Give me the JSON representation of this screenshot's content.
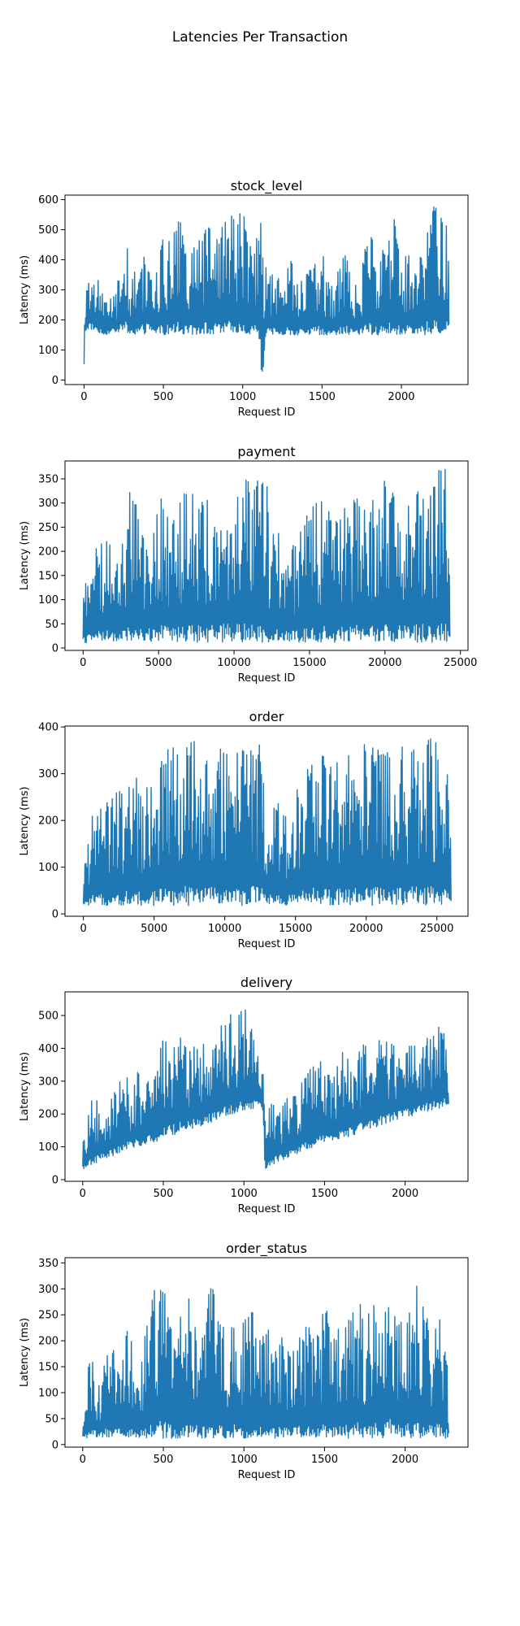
{
  "figure": {
    "suptitle": "Latencies Per Transaction"
  },
  "chart_data": [
    {
      "type": "line",
      "title": "stock_level",
      "xlabel": "Request ID",
      "ylabel": "Latency (ms)",
      "xlim": [
        -120,
        2420
      ],
      "ylim": [
        -15,
        615
      ],
      "xticks": [
        0,
        500,
        1000,
        1500,
        2000
      ],
      "xtick_labels": [
        "0",
        "500",
        "1000",
        "1500",
        "2000"
      ],
      "yticks": [
        0,
        100,
        200,
        300,
        400,
        500,
        600
      ],
      "ytick_labels": [
        "0",
        "100",
        "200",
        "300",
        "400",
        "500",
        "600"
      ],
      "color": "#1f77b4",
      "series": [
        {
          "x": [
            0,
            5,
            30,
            80,
            130,
            200,
            260,
            300,
            350,
            400,
            450,
            500,
            550,
            600,
            650,
            700,
            750,
            800,
            850,
            900,
            950,
            1000,
            1050,
            1100,
            1120,
            1130,
            1140,
            1150,
            1200,
            1250,
            1300,
            1350,
            1400,
            1450,
            1500,
            1550,
            1600,
            1650,
            1700,
            1750,
            1800,
            1850,
            1900,
            1950,
            2000,
            2050,
            2100,
            2150,
            2200,
            2250,
            2280,
            2300
          ],
          "min": [
            50,
            160,
            170,
            160,
            150,
            160,
            160,
            150,
            150,
            155,
            150,
            150,
            150,
            150,
            150,
            150,
            155,
            150,
            150,
            150,
            150,
            150,
            150,
            150,
            15,
            10,
            130,
            150,
            150,
            150,
            150,
            150,
            150,
            150,
            150,
            150,
            150,
            150,
            150,
            150,
            150,
            150,
            150,
            150,
            150,
            150,
            150,
            150,
            150,
            150,
            150,
            170
          ],
          "max": [
            80,
            240,
            400,
            350,
            260,
            290,
            490,
            330,
            420,
            470,
            360,
            480,
            460,
            550,
            420,
            470,
            500,
            510,
            480,
            550,
            560,
            570,
            440,
            590,
            560,
            360,
            370,
            380,
            360,
            330,
            420,
            330,
            360,
            380,
            440,
            310,
            360,
            440,
            310,
            360,
            550,
            380,
            460,
            560,
            380,
            460,
            360,
            530,
            580,
            570,
            560,
            370
          ]
        }
      ]
    },
    {
      "type": "line",
      "title": "payment",
      "xlabel": "Request ID",
      "ylabel": "Latency (ms)",
      "xlim": [
        -1200,
        25500
      ],
      "ylim": [
        -5,
        387
      ],
      "xticks": [
        0,
        5000,
        10000,
        15000,
        20000,
        25000
      ],
      "xtick_labels": [
        "0",
        "5000",
        "10000",
        "15000",
        "20000",
        "25000"
      ],
      "yticks": [
        0,
        50,
        100,
        150,
        200,
        250,
        300,
        350
      ],
      "ytick_labels": [
        "0",
        "50",
        "100",
        "150",
        "200",
        "250",
        "300",
        "350"
      ],
      "color": "#1f77b4",
      "series": [
        {
          "x": [
            0,
            500,
            1500,
            2500,
            3200,
            4000,
            5000,
            6000,
            7000,
            8000,
            9000,
            10000,
            11000,
            11500,
            12200,
            12300,
            13000,
            14000,
            15000,
            16000,
            17000,
            18000,
            19000,
            20000,
            21000,
            22000,
            23000,
            24000,
            24300
          ],
          "min": [
            10,
            12,
            12,
            12,
            12,
            12,
            12,
            12,
            12,
            12,
            12,
            12,
            12,
            12,
            12,
            12,
            12,
            12,
            12,
            12,
            12,
            12,
            12,
            12,
            12,
            12,
            12,
            12,
            12
          ],
          "max": [
            110,
            200,
            230,
            220,
            350,
            240,
            330,
            270,
            360,
            300,
            350,
            330,
            355,
            360,
            360,
            230,
            260,
            220,
            300,
            310,
            280,
            330,
            300,
            350,
            320,
            330,
            365,
            370,
            230
          ]
        }
      ]
    },
    {
      "type": "line",
      "title": "order",
      "xlabel": "Request ID",
      "ylabel": "Latency (ms)",
      "xlim": [
        -1300,
        27200
      ],
      "ylim": [
        -5,
        402
      ],
      "xticks": [
        0,
        5000,
        10000,
        15000,
        20000,
        25000
      ],
      "xtick_labels": [
        "0",
        "5000",
        "10000",
        "15000",
        "20000",
        "25000"
      ],
      "yticks": [
        0,
        100,
        200,
        300,
        400
      ],
      "ytick_labels": [
        "0",
        "100",
        "200",
        "300",
        "400"
      ],
      "color": "#1f77b4",
      "series": [
        {
          "x": [
            0,
            500,
            1500,
            2500,
            3500,
            4500,
            5500,
            6500,
            7500,
            8500,
            9500,
            10500,
            11500,
            12500,
            13000,
            13500,
            14500,
            15500,
            16500,
            17500,
            18500,
            19500,
            20500,
            21500,
            22500,
            23500,
            24500,
            25500,
            26000
          ],
          "min": [
            15,
            18,
            18,
            18,
            18,
            18,
            18,
            18,
            18,
            18,
            18,
            18,
            18,
            18,
            18,
            18,
            18,
            18,
            18,
            18,
            18,
            18,
            18,
            18,
            18,
            18,
            18,
            18,
            18
          ],
          "max": [
            90,
            210,
            240,
            280,
            300,
            280,
            340,
            370,
            380,
            370,
            380,
            330,
            380,
            375,
            220,
            260,
            220,
            300,
            360,
            320,
            340,
            370,
            360,
            370,
            360,
            370,
            375,
            380,
            310
          ]
        }
      ]
    },
    {
      "type": "line",
      "title": "delivery",
      "xlabel": "Request ID",
      "ylabel": "Latency (ms)",
      "xlim": [
        -110,
        2390
      ],
      "ylim": [
        -5,
        572
      ],
      "xticks": [
        0,
        500,
        1000,
        1500,
        2000
      ],
      "xtick_labels": [
        "0",
        "500",
        "1000",
        "1500",
        "2000"
      ],
      "yticks": [
        0,
        100,
        200,
        300,
        400,
        500
      ],
      "ytick_labels": [
        "0",
        "100",
        "200",
        "300",
        "400",
        "500"
      ],
      "color": "#1f77b4",
      "series": [
        {
          "x": [
            0,
            50,
            100,
            150,
            200,
            250,
            300,
            350,
            400,
            450,
            500,
            550,
            600,
            650,
            700,
            750,
            800,
            850,
            900,
            950,
            1000,
            1050,
            1100,
            1120,
            1130,
            1150,
            1200,
            1250,
            1300,
            1350,
            1400,
            1450,
            1500,
            1550,
            1600,
            1650,
            1700,
            1750,
            1800,
            1850,
            1900,
            1950,
            2000,
            2050,
            2100,
            2150,
            2200,
            2250,
            2270
          ],
          "min": [
            30,
            45,
            55,
            65,
            75,
            85,
            95,
            100,
            110,
            115,
            125,
            135,
            140,
            150,
            160,
            165,
            175,
            185,
            190,
            200,
            210,
            215,
            230,
            200,
            25,
            40,
            50,
            60,
            70,
            85,
            90,
            100,
            110,
            115,
            125,
            130,
            140,
            150,
            155,
            165,
            175,
            180,
            190,
            195,
            205,
            210,
            215,
            225,
            230
          ],
          "max": [
            130,
            240,
            250,
            240,
            270,
            330,
            300,
            340,
            350,
            330,
            460,
            420,
            490,
            390,
            410,
            450,
            410,
            470,
            530,
            480,
            550,
            470,
            350,
            320,
            180,
            230,
            260,
            250,
            270,
            290,
            330,
            360,
            370,
            300,
            400,
            380,
            390,
            420,
            420,
            450,
            440,
            430,
            450,
            410,
            430,
            440,
            490,
            440,
            300
          ]
        }
      ]
    },
    {
      "type": "line",
      "title": "order_status",
      "xlabel": "Request ID",
      "ylabel": "Latency (ms)",
      "xlim": [
        -110,
        2390
      ],
      "ylim": [
        -5,
        360
      ],
      "xticks": [
        0,
        500,
        1000,
        1500,
        2000
      ],
      "xtick_labels": [
        "0",
        "500",
        "1000",
        "1500",
        "2000"
      ],
      "yticks": [
        0,
        50,
        100,
        150,
        200,
        250,
        300,
        350
      ],
      "ytick_labels": [
        "0",
        "50",
        "100",
        "150",
        "200",
        "250",
        "300",
        "350"
      ],
      "color": "#1f77b4",
      "series": [
        {
          "x": [
            0,
            50,
            100,
            150,
            200,
            250,
            300,
            350,
            400,
            450,
            500,
            550,
            600,
            650,
            700,
            750,
            800,
            850,
            900,
            950,
            1000,
            1050,
            1100,
            1150,
            1200,
            1250,
            1300,
            1350,
            1400,
            1450,
            1500,
            1550,
            1600,
            1650,
            1700,
            1750,
            1800,
            1850,
            1900,
            1950,
            2000,
            2050,
            2100,
            2150,
            2200,
            2250,
            2270
          ],
          "min": [
            12,
            12,
            12,
            12,
            12,
            12,
            12,
            12,
            12,
            12,
            12,
            12,
            12,
            12,
            12,
            12,
            12,
            12,
            12,
            12,
            12,
            12,
            12,
            12,
            12,
            12,
            12,
            12,
            12,
            12,
            12,
            12,
            12,
            12,
            12,
            12,
            12,
            12,
            12,
            12,
            12,
            12,
            12,
            12,
            12,
            12,
            12
          ],
          "max": [
            50,
            190,
            115,
            190,
            180,
            250,
            200,
            190,
            230,
            310,
            320,
            230,
            280,
            290,
            260,
            230,
            330,
            240,
            210,
            260,
            240,
            260,
            210,
            230,
            220,
            210,
            190,
            220,
            240,
            200,
            300,
            210,
            230,
            240,
            310,
            220,
            290,
            210,
            345,
            260,
            230,
            340,
            290,
            240,
            250,
            240,
            100
          ]
        }
      ]
    }
  ]
}
